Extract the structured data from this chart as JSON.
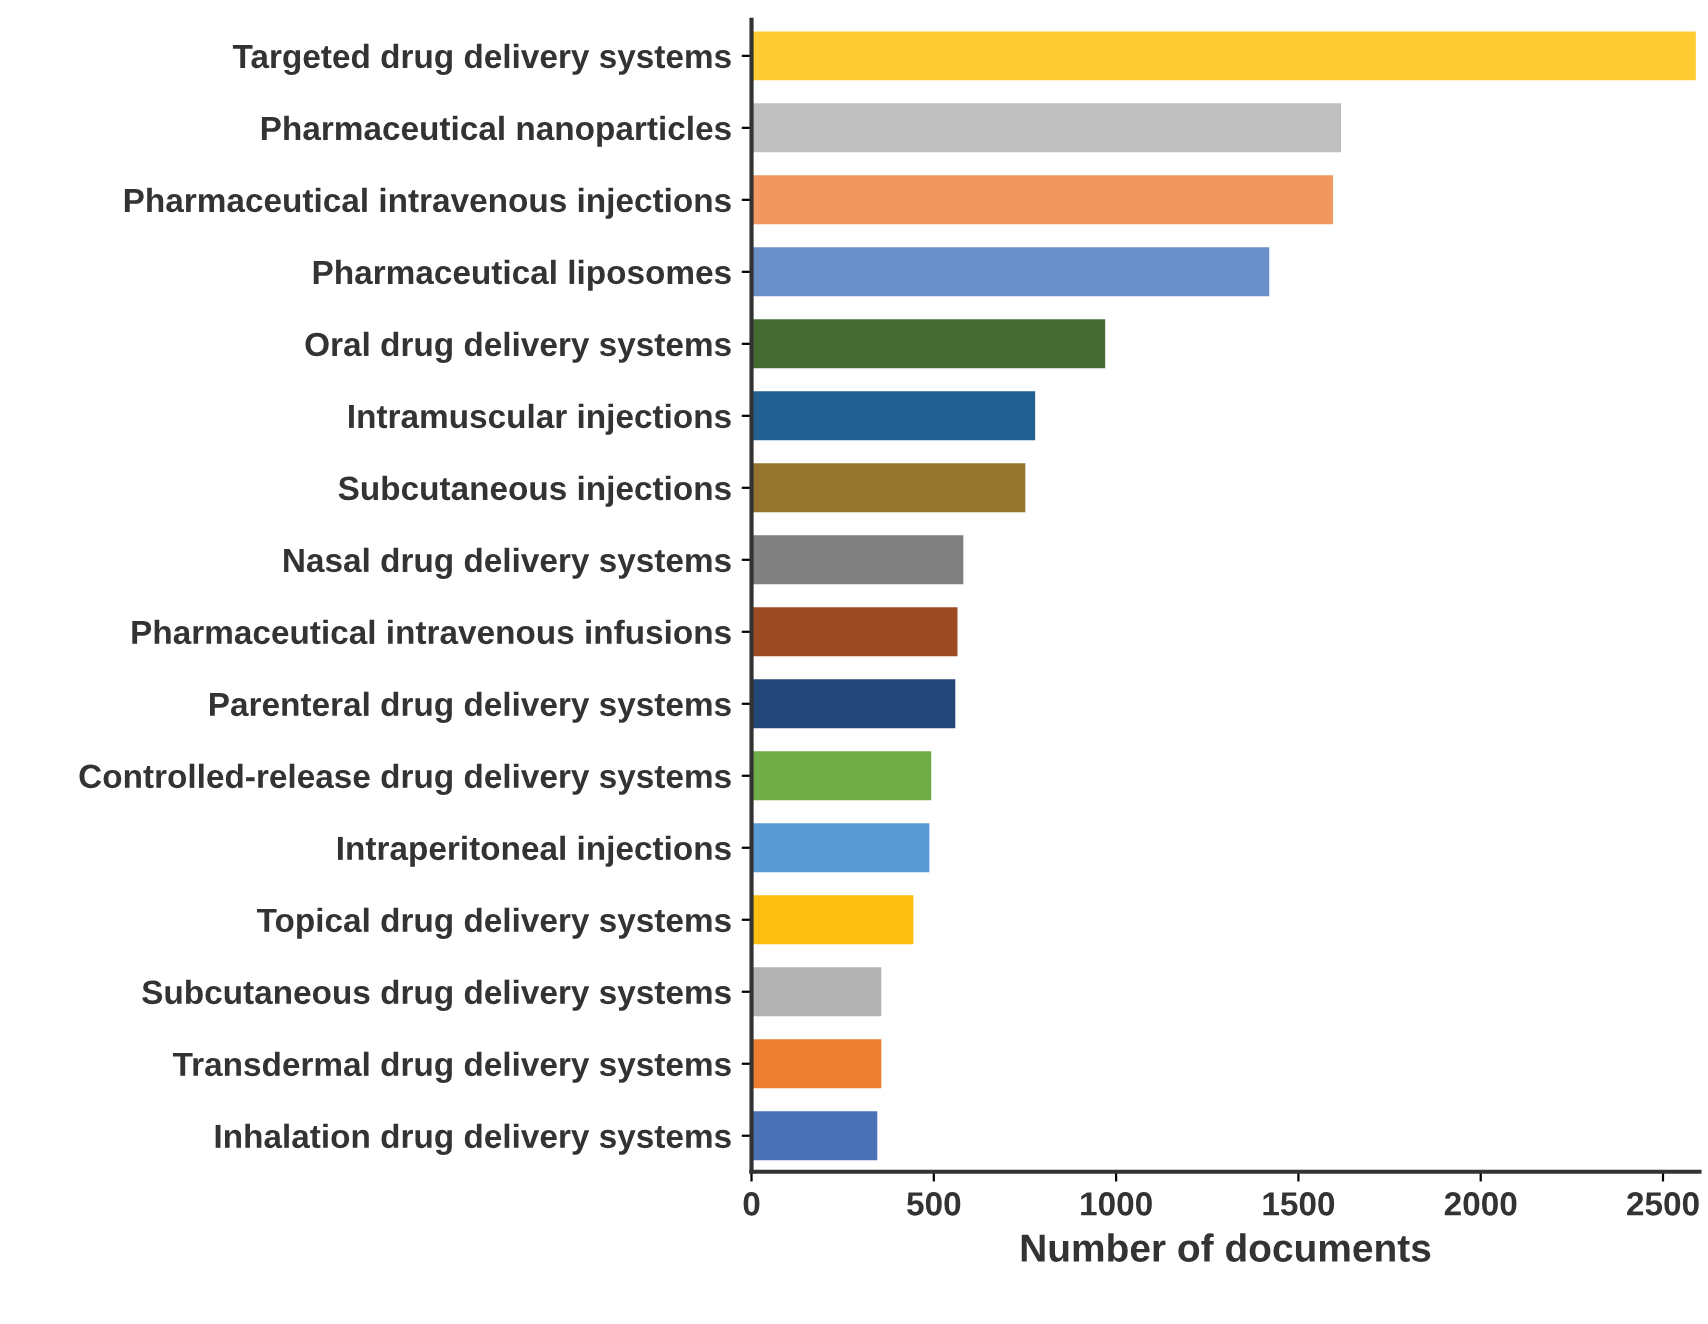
{
  "chart_data": {
    "type": "bar",
    "orientation": "horizontal",
    "xlabel": "Number of documents",
    "categories": [
      "Targeted drug delivery systems",
      "Pharmaceutical nanoparticles",
      "Pharmaceutical intravenous injections",
      "Pharmaceutical liposomes",
      "Oral drug delivery systems",
      "Intramuscular injections",
      "Subcutaneous injections",
      "Nasal drug delivery systems",
      "Pharmaceutical intravenous infusions",
      "Parenteral drug delivery systems",
      "Controlled-release drug delivery systems",
      "Intraperitoneal injections",
      "Topical drug delivery systems",
      "Subcutaneous drug delivery systems",
      "Transdermal drug delivery systems",
      "Inhalation drug delivery systems"
    ],
    "values": [
      2590,
      1617,
      1595,
      1420,
      970,
      778,
      751,
      581,
      565,
      559,
      493,
      488,
      444,
      356,
      356,
      345
    ],
    "colors": [
      "#ffcd33",
      "#bfbfbf",
      "#f09860",
      "#6b8fc8",
      "#466b32",
      "#236092",
      "#95752e",
      "#808080",
      "#9c4b22",
      "#244779",
      "#70ad47",
      "#5b9bd5",
      "#fcbf12",
      "#b2b2b2",
      "#ed7d31",
      "#4a70b6"
    ],
    "xlim": [
      0,
      2600
    ],
    "xticks": [
      0,
      500,
      1000,
      1500,
      2000,
      2500
    ],
    "grid": false,
    "legend": false
  }
}
